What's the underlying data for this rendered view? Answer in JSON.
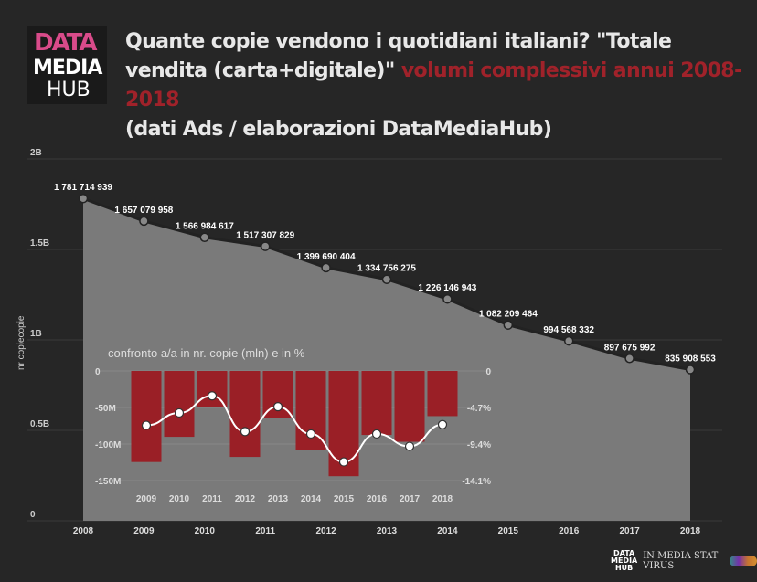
{
  "logo": {
    "text": [
      "DATA",
      "MEDIA",
      "HUB"
    ]
  },
  "title": {
    "part1": "Quante copie vendono i quotidiani italiani? \"Totale vendita (carta+digitale)\"",
    "highlight": "volumi complessivi annui 2008-2018",
    "part2": "(dati Ads / elaborazioni DataMediaHub)"
  },
  "colors": {
    "background": "#262626",
    "area": "#7a7a7a",
    "bars": "#9a1f26",
    "line": "#ffffff",
    "highlight": "#a0222a"
  },
  "chart_data": [
    {
      "type": "area",
      "ylabel": "nr copiecopie",
      "x": [
        "2008",
        "2009",
        "2010",
        "2011",
        "2012",
        "2013",
        "2014",
        "2015",
        "2016",
        "2017",
        "2018"
      ],
      "values": [
        1781714939,
        1657079958,
        1566984617,
        1517307829,
        1399690404,
        1334756275,
        1226146943,
        1082209464,
        994568332,
        897675992,
        835908553
      ],
      "data_labels": [
        "1 781 714 939",
        "1 657 079 958",
        "1 566 984 617",
        "1 517 307 829",
        "1 399 690 404",
        "1 334 756 275",
        "1 226 146 943",
        "1 082 209 464",
        "994 568 332",
        "897 675 992",
        "835 908 553"
      ],
      "yticks": [
        "0",
        "0.5B",
        "1B",
        "1.5B",
        "2B"
      ],
      "ylim": [
        0,
        2000000000
      ],
      "grid": true
    },
    {
      "type": "bar+line",
      "title": "confronto a/a in nr. copie (mln) e in %",
      "categories": [
        "2009",
        "2010",
        "2011",
        "2012",
        "2013",
        "2014",
        "2015",
        "2016",
        "2017",
        "2018"
      ],
      "series": [
        {
          "type": "bar",
          "axis": "left",
          "values": [
            -124.6,
            -90.1,
            -49.7,
            -117.6,
            -64.9,
            -108.6,
            -144.0,
            -87.6,
            -96.9,
            -61.8
          ]
        },
        {
          "type": "line",
          "axis": "right",
          "values": [
            -7.0,
            -5.4,
            -3.2,
            -7.8,
            -4.6,
            -8.1,
            -11.7,
            -8.1,
            -9.7,
            -6.9
          ]
        }
      ],
      "yticks_left": [
        "0",
        "-50M",
        "-100M",
        "-150M"
      ],
      "ylim_left": [
        -150,
        0
      ],
      "yticks_right": [
        "0",
        "-4.7%",
        "-9.4%",
        "-14.1%"
      ],
      "ylim_right": [
        -14.1,
        0
      ]
    }
  ],
  "footer": {
    "text": "IN MEDIA STAT VIRUS"
  }
}
